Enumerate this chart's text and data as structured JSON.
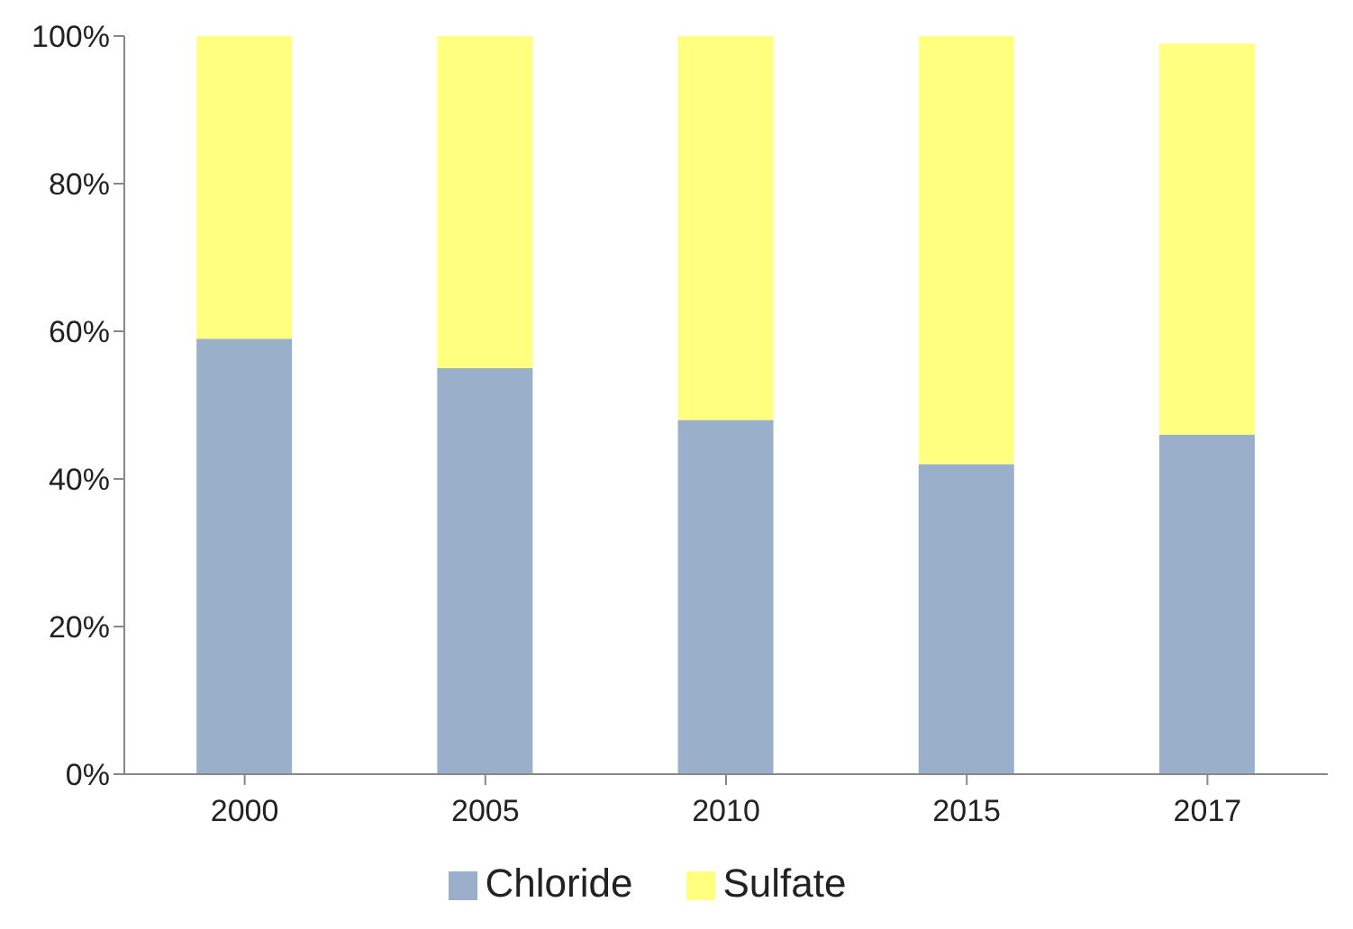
{
  "chart_data": {
    "type": "bar",
    "stacked": true,
    "categories": [
      "2000",
      "2005",
      "2010",
      "2015",
      "2017"
    ],
    "series": [
      {
        "name": "Chloride",
        "color": "#9aafc9",
        "values": [
          59,
          55,
          48,
          42,
          46
        ]
      },
      {
        "name": "Sulfate",
        "color": "#ffff80",
        "values": [
          41,
          45,
          52,
          58,
          53
        ]
      }
    ],
    "ylim": [
      0,
      100
    ],
    "yticks": [
      {
        "value": 0,
        "label": "0%"
      },
      {
        "value": 20,
        "label": "20%"
      },
      {
        "value": 40,
        "label": "40%"
      },
      {
        "value": 60,
        "label": "60%"
      },
      {
        "value": 80,
        "label": "80%"
      },
      {
        "value": 100,
        "label": "100%"
      }
    ],
    "grid": false,
    "legend": "bottom"
  }
}
